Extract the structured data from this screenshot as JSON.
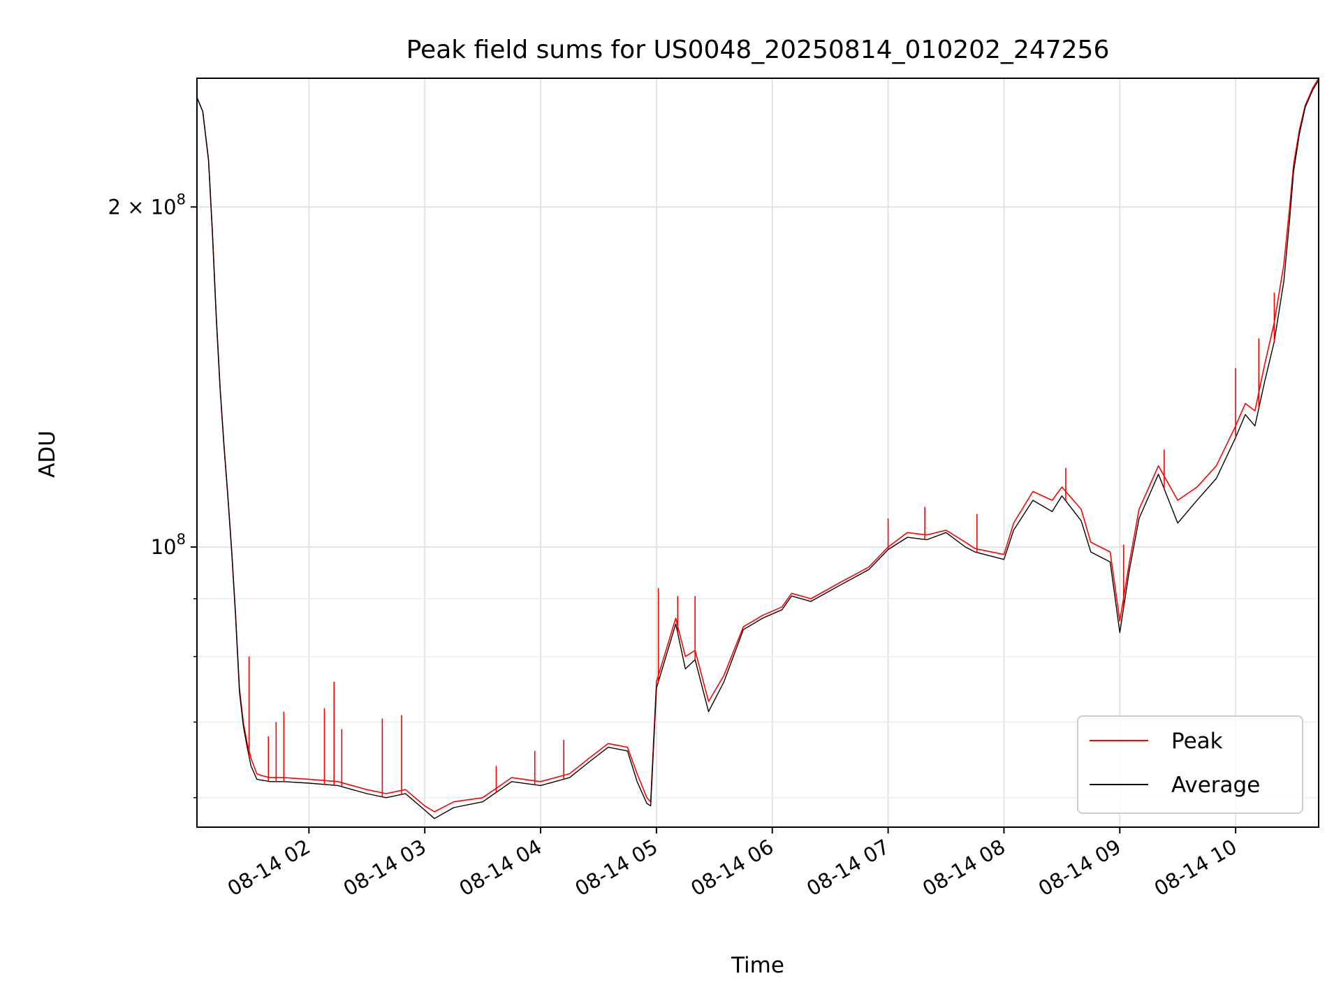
{
  "chart_data": {
    "type": "line",
    "title": "Peak field sums for US0048_20250814_010202_247256",
    "xlabel": "Time",
    "ylabel": "ADU",
    "y_scale": "log",
    "ylim": [
      56500000,
      260000000
    ],
    "xlim": [
      "2025-08-14 01:02",
      "2025-08-14 10:43"
    ],
    "grid": true,
    "legend_position": "lower right",
    "x_ticks": [
      {
        "t": "2025-08-14 02:00",
        "label": "08-14 02"
      },
      {
        "t": "2025-08-14 03:00",
        "label": "08-14 03"
      },
      {
        "t": "2025-08-14 04:00",
        "label": "08-14 04"
      },
      {
        "t": "2025-08-14 05:00",
        "label": "08-14 05"
      },
      {
        "t": "2025-08-14 06:00",
        "label": "08-14 06"
      },
      {
        "t": "2025-08-14 07:00",
        "label": "08-14 07"
      },
      {
        "t": "2025-08-14 08:00",
        "label": "08-14 08"
      },
      {
        "t": "2025-08-14 09:00",
        "label": "08-14 09"
      },
      {
        "t": "2025-08-14 10:00",
        "label": "08-14 10"
      }
    ],
    "y_major_ticks": [
      {
        "value": 100000000,
        "base": "10",
        "exp": "8"
      },
      {
        "value": 200000000,
        "base": "2 × 10",
        "exp": "8"
      }
    ],
    "y_minor_ticks": [
      60000000,
      70000000,
      80000000,
      90000000
    ],
    "series": [
      {
        "name": "Peak",
        "color": "#ff0000",
        "x": [
          "2025-08-14 01:02",
          "2025-08-14 01:05",
          "2025-08-14 01:08",
          "2025-08-14 01:10",
          "2025-08-14 01:12",
          "2025-08-14 01:14",
          "2025-08-14 01:16",
          "2025-08-14 01:18",
          "2025-08-14 01:20",
          "2025-08-14 01:22",
          "2025-08-14 01:24",
          "2025-08-14 01:26",
          "2025-08-14 01:28",
          "2025-08-14 01:30",
          "2025-08-14 01:33",
          "2025-08-14 01:35",
          "2025-08-14 01:40",
          "2025-08-14 01:47",
          "2025-08-14 02:00",
          "2025-08-14 02:15",
          "2025-08-14 02:30",
          "2025-08-14 02:40",
          "2025-08-14 02:50",
          "2025-08-14 03:00",
          "2025-08-14 03:05",
          "2025-08-14 03:15",
          "2025-08-14 03:30",
          "2025-08-14 03:45",
          "2025-08-14 04:00",
          "2025-08-14 04:15",
          "2025-08-14 04:25",
          "2025-08-14 04:35",
          "2025-08-14 04:45",
          "2025-08-14 04:50",
          "2025-08-14 04:55",
          "2025-08-14 04:57",
          "2025-08-14 05:00",
          "2025-08-14 05:10",
          "2025-08-14 05:15",
          "2025-08-14 05:20",
          "2025-08-14 05:27",
          "2025-08-14 05:35",
          "2025-08-14 05:45",
          "2025-08-14 05:55",
          "2025-08-14 06:05",
          "2025-08-14 06:10",
          "2025-08-14 06:20",
          "2025-08-14 06:35",
          "2025-08-14 06:50",
          "2025-08-14 07:00",
          "2025-08-14 07:10",
          "2025-08-14 07:20",
          "2025-08-14 07:30",
          "2025-08-14 07:40",
          "2025-08-14 07:45",
          "2025-08-14 08:00",
          "2025-08-14 08:05",
          "2025-08-14 08:15",
          "2025-08-14 08:25",
          "2025-08-14 08:30",
          "2025-08-14 08:40",
          "2025-08-14 08:45",
          "2025-08-14 08:55",
          "2025-08-14 09:00",
          "2025-08-14 09:05",
          "2025-08-14 09:10",
          "2025-08-14 09:20",
          "2025-08-14 09:30",
          "2025-08-14 09:40",
          "2025-08-14 09:50",
          "2025-08-14 10:00",
          "2025-08-14 10:05",
          "2025-08-14 10:10",
          "2025-08-14 10:15",
          "2025-08-14 10:20",
          "2025-08-14 10:25",
          "2025-08-14 10:28",
          "2025-08-14 10:30",
          "2025-08-14 10:33",
          "2025-08-14 10:36",
          "2025-08-14 10:40",
          "2025-08-14 10:43"
        ],
        "y": [
          250000000,
          243000000,
          220000000,
          190000000,
          160000000,
          138000000,
          123000000,
          111000000,
          99000000,
          87000000,
          75000000,
          70000000,
          67000000,
          65000000,
          63000000,
          62800000,
          62500000,
          62500000,
          62300000,
          62000000,
          61000000,
          60500000,
          61000000,
          59000000,
          58300000,
          59500000,
          60000000,
          62500000,
          62000000,
          63000000,
          65000000,
          67000000,
          66500000,
          63000000,
          60000000,
          59500000,
          76000000,
          86500000,
          80000000,
          81000000,
          73000000,
          77000000,
          85000000,
          87000000,
          88500000,
          91000000,
          90000000,
          93000000,
          96000000,
          100000000,
          103000000,
          102500000,
          103500000,
          101000000,
          99700000,
          98500000,
          105000000,
          112000000,
          110000000,
          113000000,
          108000000,
          101000000,
          99000000,
          86000000,
          97000000,
          108000000,
          118000000,
          110000000,
          113000000,
          118000000,
          128000000,
          134000000,
          132000000,
          145000000,
          158000000,
          178000000,
          200000000,
          218000000,
          234000000,
          246000000,
          255000000,
          260000000
        ]
      },
      {
        "name": "Average",
        "color": "#000000",
        "x": [
          "2025-08-14 01:02",
          "2025-08-14 01:05",
          "2025-08-14 01:08",
          "2025-08-14 01:10",
          "2025-08-14 01:12",
          "2025-08-14 01:14",
          "2025-08-14 01:16",
          "2025-08-14 01:18",
          "2025-08-14 01:20",
          "2025-08-14 01:22",
          "2025-08-14 01:24",
          "2025-08-14 01:26",
          "2025-08-14 01:28",
          "2025-08-14 01:30",
          "2025-08-14 01:33",
          "2025-08-14 01:35",
          "2025-08-14 01:40",
          "2025-08-14 01:47",
          "2025-08-14 02:00",
          "2025-08-14 02:15",
          "2025-08-14 02:30",
          "2025-08-14 02:40",
          "2025-08-14 02:50",
          "2025-08-14 03:00",
          "2025-08-14 03:05",
          "2025-08-14 03:15",
          "2025-08-14 03:30",
          "2025-08-14 03:45",
          "2025-08-14 04:00",
          "2025-08-14 04:15",
          "2025-08-14 04:25",
          "2025-08-14 04:35",
          "2025-08-14 04:45",
          "2025-08-14 04:50",
          "2025-08-14 04:55",
          "2025-08-14 04:57",
          "2025-08-14 05:00",
          "2025-08-14 05:10",
          "2025-08-14 05:15",
          "2025-08-14 05:20",
          "2025-08-14 05:27",
          "2025-08-14 05:35",
          "2025-08-14 05:45",
          "2025-08-14 05:55",
          "2025-08-14 06:05",
          "2025-08-14 06:10",
          "2025-08-14 06:20",
          "2025-08-14 06:35",
          "2025-08-14 06:50",
          "2025-08-14 07:00",
          "2025-08-14 07:10",
          "2025-08-14 07:20",
          "2025-08-14 07:30",
          "2025-08-14 07:40",
          "2025-08-14 07:45",
          "2025-08-14 08:00",
          "2025-08-14 08:05",
          "2025-08-14 08:15",
          "2025-08-14 08:25",
          "2025-08-14 08:30",
          "2025-08-14 08:40",
          "2025-08-14 08:45",
          "2025-08-14 08:55",
          "2025-08-14 09:00",
          "2025-08-14 09:05",
          "2025-08-14 09:10",
          "2025-08-14 09:20",
          "2025-08-14 09:30",
          "2025-08-14 09:40",
          "2025-08-14 09:50",
          "2025-08-14 10:00",
          "2025-08-14 10:05",
          "2025-08-14 10:10",
          "2025-08-14 10:15",
          "2025-08-14 10:20",
          "2025-08-14 10:25",
          "2025-08-14 10:28",
          "2025-08-14 10:30",
          "2025-08-14 10:33",
          "2025-08-14 10:36",
          "2025-08-14 10:40",
          "2025-08-14 10:43"
        ],
        "y": [
          250000000,
          243000000,
          220000000,
          190000000,
          160000000,
          138000000,
          123000000,
          111000000,
          99000000,
          87000000,
          74500000,
          69500000,
          66500000,
          64000000,
          62300000,
          62200000,
          62000000,
          62000000,
          61800000,
          61500000,
          60500000,
          60000000,
          60500000,
          58500000,
          57500000,
          58800000,
          59500000,
          62000000,
          61500000,
          62500000,
          64500000,
          66500000,
          66000000,
          62000000,
          59300000,
          59000000,
          75000000,
          85500000,
          78000000,
          79500000,
          71500000,
          76000000,
          84500000,
          86500000,
          88000000,
          90500000,
          89500000,
          92500000,
          95500000,
          99500000,
          102000000,
          101500000,
          103000000,
          100000000,
          99000000,
          97500000,
          103500000,
          110000000,
          107500000,
          111000000,
          105500000,
          99000000,
          97000000,
          84000000,
          95500000,
          106000000,
          116000000,
          105000000,
          110000000,
          115000000,
          125000000,
          131000000,
          128000000,
          140000000,
          152000000,
          172000000,
          195000000,
          215000000,
          232000000,
          245000000,
          254000000,
          259000000
        ]
      }
    ],
    "peak_spikes": [
      {
        "t": "2025-08-14 01:29",
        "y": 80000000
      },
      {
        "t": "2025-08-14 01:39",
        "y": 68000000
      },
      {
        "t": "2025-08-14 01:43",
        "y": 70000000
      },
      {
        "t": "2025-08-14 01:47",
        "y": 71500000
      },
      {
        "t": "2025-08-14 02:08",
        "y": 72000000
      },
      {
        "t": "2025-08-14 02:13",
        "y": 76000000
      },
      {
        "t": "2025-08-14 02:17",
        "y": 69000000
      },
      {
        "t": "2025-08-14 02:38",
        "y": 70500000
      },
      {
        "t": "2025-08-14 02:48",
        "y": 71000000
      },
      {
        "t": "2025-08-14 03:37",
        "y": 64000000
      },
      {
        "t": "2025-08-14 03:57",
        "y": 66000000
      },
      {
        "t": "2025-08-14 04:12",
        "y": 67500000
      },
      {
        "t": "2025-08-14 05:01",
        "y": 92000000
      },
      {
        "t": "2025-08-14 05:11",
        "y": 90500000
      },
      {
        "t": "2025-08-14 05:20",
        "y": 90500000
      },
      {
        "t": "2025-08-14 07:00",
        "y": 106000000
      },
      {
        "t": "2025-08-14 07:19",
        "y": 108500000
      },
      {
        "t": "2025-08-14 07:46",
        "y": 107000000
      },
      {
        "t": "2025-08-14 08:32",
        "y": 117500000
      },
      {
        "t": "2025-08-14 09:02",
        "y": 100500000
      },
      {
        "t": "2025-08-14 09:23",
        "y": 122000000
      },
      {
        "t": "2025-08-14 10:00",
        "y": 144000000
      },
      {
        "t": "2025-08-14 10:12",
        "y": 153000000
      },
      {
        "t": "2025-08-14 10:20",
        "y": 168000000
      }
    ]
  }
}
